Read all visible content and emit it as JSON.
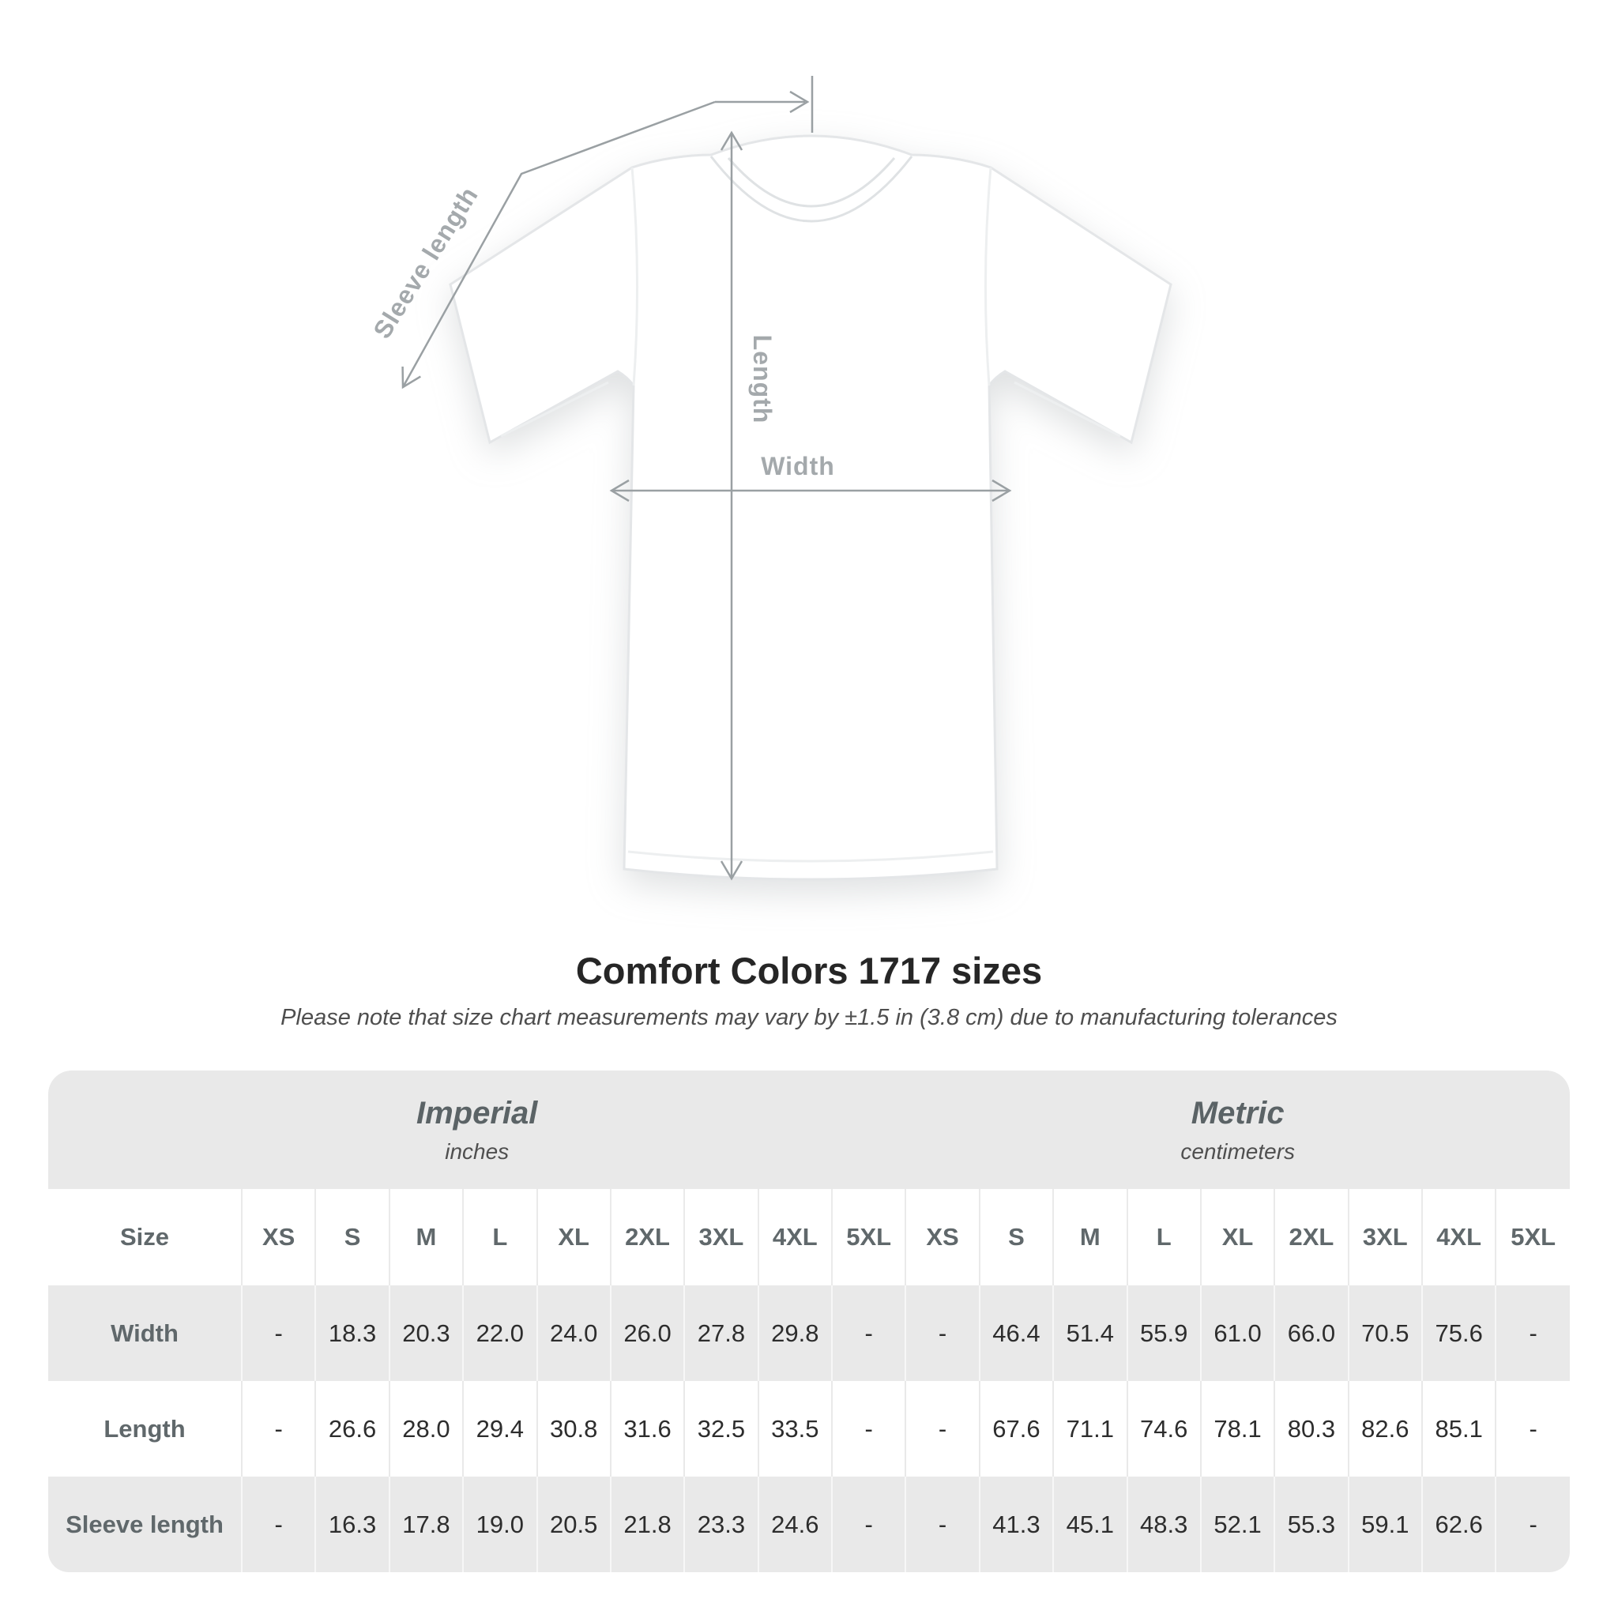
{
  "diagram": {
    "labels": {
      "sleeve_length": "Sleeve length",
      "length": "Length",
      "width": "Width"
    }
  },
  "heading": {
    "title": "Comfort Colors 1717 sizes",
    "subtitle": "Please note that size chart measurements may vary by ±1.5 in (3.8 cm) due to manufacturing tolerances"
  },
  "chart_data": {
    "type": "table",
    "title": "Comfort Colors 1717 sizes",
    "corner_header": "Size",
    "unit_groups": [
      {
        "label": "Imperial",
        "unit": "inches"
      },
      {
        "label": "Metric",
        "unit": "centimeters"
      }
    ],
    "size_columns": [
      "XS",
      "S",
      "M",
      "L",
      "XL",
      "2XL",
      "3XL",
      "4XL",
      "5XL"
    ],
    "rows": [
      {
        "label": "Width",
        "imperial": [
          "-",
          "18.3",
          "20.3",
          "22.0",
          "24.0",
          "26.0",
          "27.8",
          "29.8",
          "-"
        ],
        "metric": [
          "-",
          "46.4",
          "51.4",
          "55.9",
          "61.0",
          "66.0",
          "70.5",
          "75.6",
          "-"
        ]
      },
      {
        "label": "Length",
        "imperial": [
          "-",
          "26.6",
          "28.0",
          "29.4",
          "30.8",
          "31.6",
          "32.5",
          "33.5",
          "-"
        ],
        "metric": [
          "-",
          "67.6",
          "71.1",
          "74.6",
          "78.1",
          "80.3",
          "82.6",
          "85.1",
          "-"
        ]
      },
      {
        "label": "Sleeve length",
        "imperial": [
          "-",
          "16.3",
          "17.8",
          "19.0",
          "20.5",
          "21.8",
          "23.3",
          "24.6",
          "-"
        ],
        "metric": [
          "-",
          "41.3",
          "45.1",
          "48.3",
          "52.1",
          "55.3",
          "59.1",
          "62.6",
          "-"
        ]
      }
    ]
  },
  "colors": {
    "table_band_gray": "#e9e9e9",
    "annotation_gray": "#9aa0a3",
    "annotation_label_gray": "#a4a9ac",
    "number_text": "#2d2d2d",
    "label_text": "#60686b",
    "title_text": "#262626"
  }
}
